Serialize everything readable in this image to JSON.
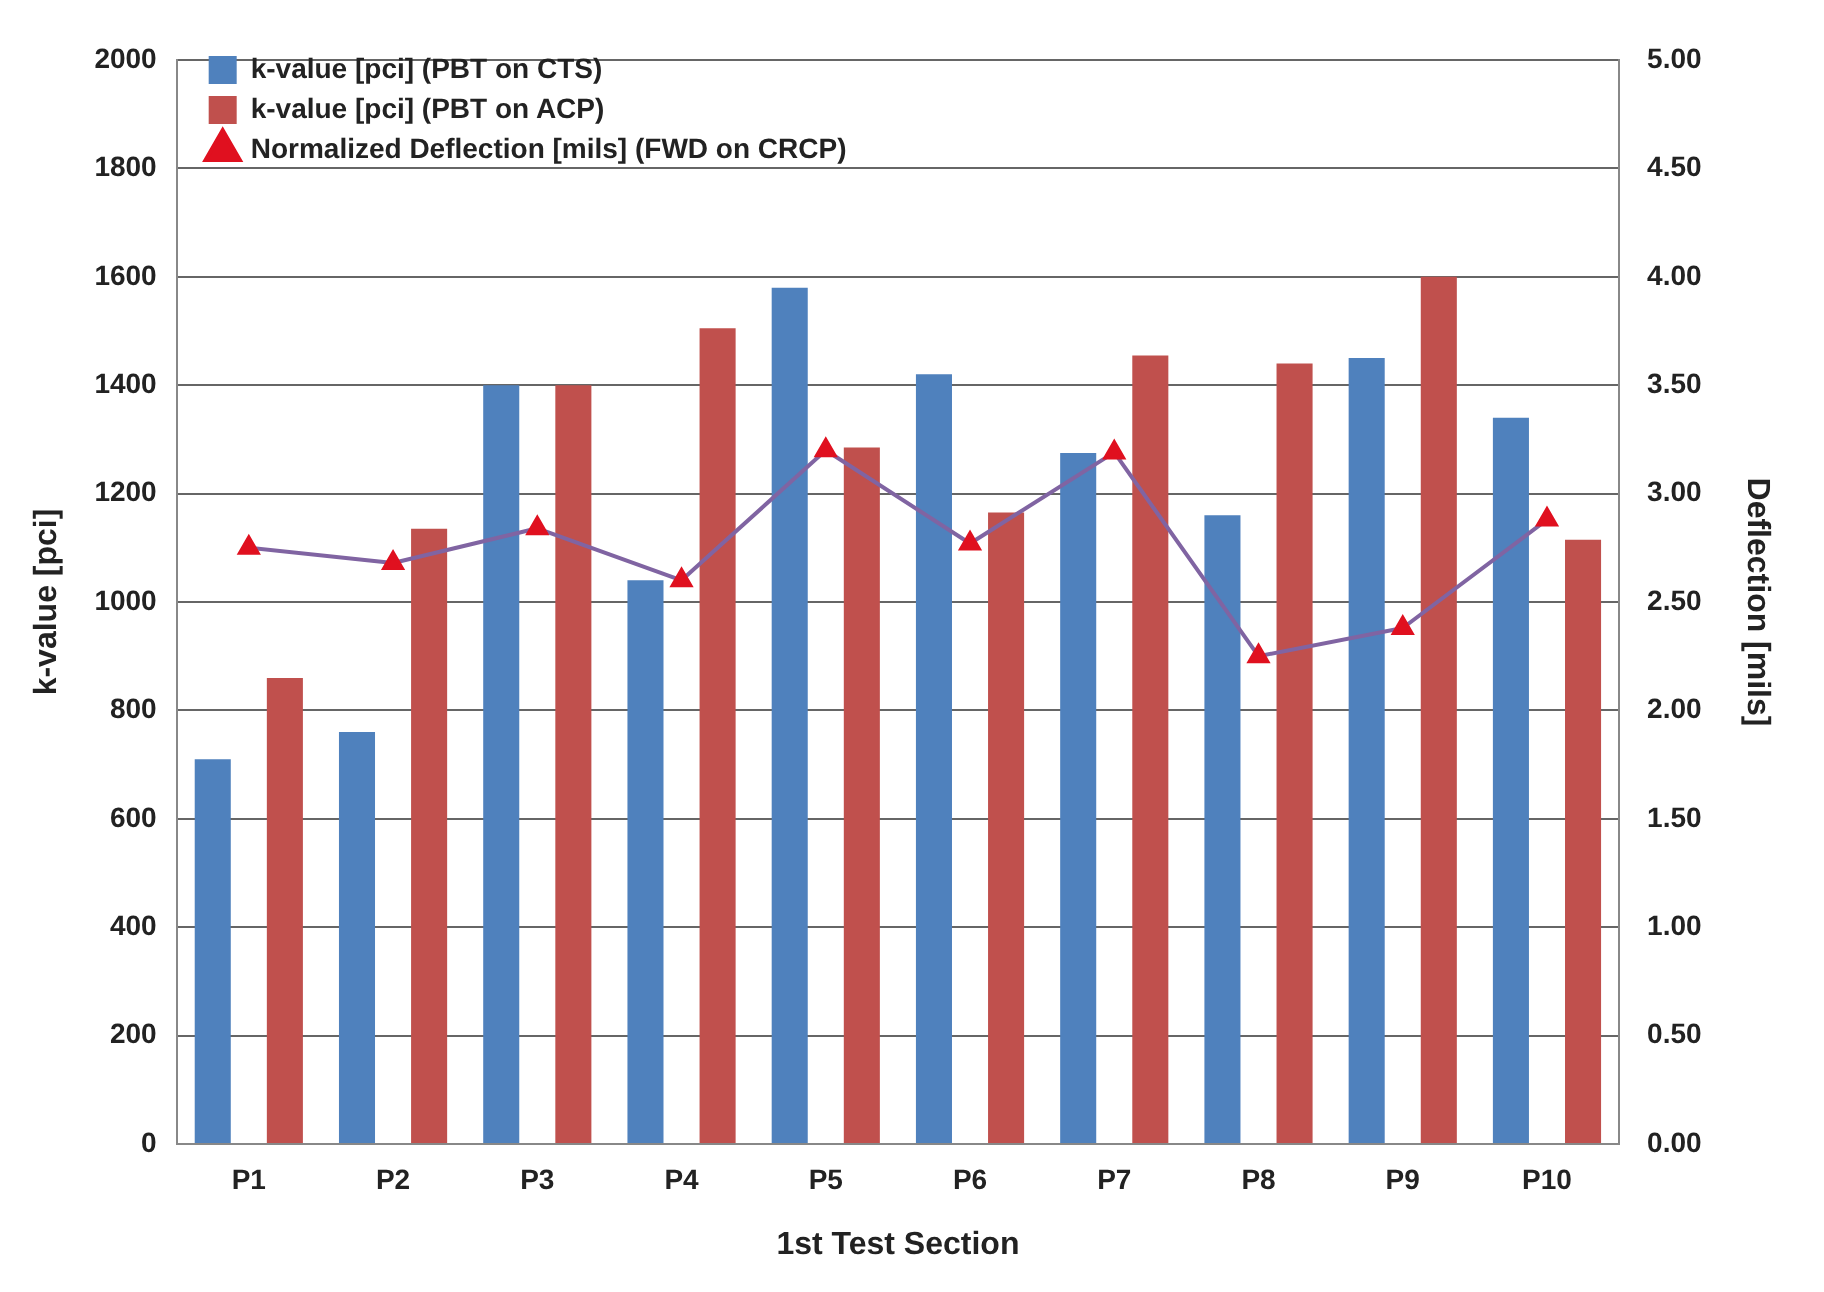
{
  "chart_data": {
    "type": "bar",
    "xlabel": "1st Test Section",
    "ylabel": "k-value [pci]",
    "y2label": "Deflection [mils]",
    "categories": [
      "P1",
      "P2",
      "P3",
      "P4",
      "P5",
      "P6",
      "P7",
      "P8",
      "P9",
      "P10"
    ],
    "series": [
      {
        "name": "k-value [pci] (PBT on CTS)",
        "color": "#4f81bd",
        "values": [
          710,
          760,
          1400,
          1040,
          1580,
          1420,
          1275,
          1160,
          1450,
          1340
        ]
      },
      {
        "name": "k-value [pci] (PBT on ACP)",
        "color": "#c0504d",
        "values": [
          860,
          1135,
          1400,
          1505,
          1285,
          1165,
          1455,
          1440,
          1600,
          1115
        ]
      },
      {
        "name": "Normalized Deflection [mils] (FWD on CRCP)",
        "type": "line",
        "axis": "y2",
        "color": "#8064a2",
        "marker": "triangle",
        "values": [
          2.75,
          2.68,
          2.84,
          2.6,
          3.2,
          2.77,
          3.19,
          2.25,
          2.38,
          2.88
        ]
      }
    ],
    "ylim": [
      0,
      2000
    ],
    "yticks": [
      0,
      200,
      400,
      600,
      800,
      1000,
      1200,
      1400,
      1600,
      1800,
      2000
    ],
    "y2lim": [
      0,
      5
    ],
    "y2ticks": [
      {
        "value": 0,
        "label": "0.00"
      },
      {
        "value": 0.5,
        "label": "0.50"
      },
      {
        "value": 1,
        "label": "1.00"
      },
      {
        "value": 1.5,
        "label": "1.50"
      },
      {
        "value": 2,
        "label": "2.00"
      },
      {
        "value": 2.5,
        "label": "2.50"
      },
      {
        "value": 3,
        "label": "3.00"
      },
      {
        "value": 3.5,
        "label": "3.50"
      },
      {
        "value": 4,
        "label": "4.00"
      },
      {
        "value": 4.5,
        "label": "4.50"
      },
      {
        "value": 5,
        "label": "5.00"
      }
    ],
    "grid": "y",
    "legend": "top left"
  }
}
